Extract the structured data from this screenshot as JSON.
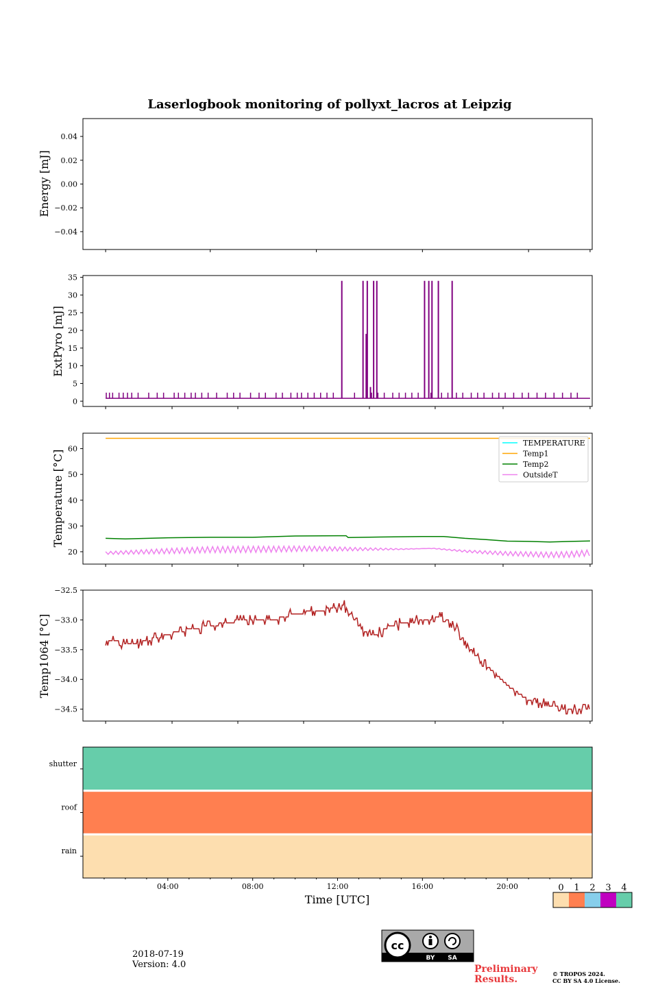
{
  "title": "Laserlogbook monitoring of pollyxt_lacros at Leipzig",
  "footer": {
    "date": "2018-07-19",
    "version": "Version: 4.0",
    "preliminary_line1": "Preliminary",
    "preliminary_line2": "Results.",
    "copyright_line1": "© TROPOS 2024.",
    "copyright_line2": "CC BY SA 4.0 License.",
    "license_badge": {
      "text": "cc",
      "by": "BY",
      "sa": "SA"
    }
  },
  "chart_data": [
    {
      "type": "line",
      "id": "energy",
      "ylabel": "Energy [mJ]",
      "ylim": [
        -0.055,
        0.055
      ],
      "yticks": [
        0.04,
        0.02,
        0.0,
        -0.02,
        -0.04
      ],
      "ytick_labels": [
        "0.04",
        "0.02",
        "0.00",
        "−0.02",
        "−0.04"
      ],
      "series": []
    },
    {
      "type": "line",
      "id": "extpyro",
      "ylabel": "ExtPyro [mJ]",
      "ylim": [
        -1.5,
        35.5
      ],
      "yticks": [
        35,
        30,
        25,
        20,
        15,
        10,
        5,
        0
      ],
      "ytick_labels": [
        "35",
        "30",
        "25",
        "20",
        "15",
        "10",
        "5",
        "0"
      ],
      "series": [
        {
          "name": "ExtPyro",
          "color": "#800080",
          "baseline": 0.8,
          "noise_spike_value": 2.4,
          "noise_spike_hours": [
            1.1,
            1.25,
            1.4,
            1.7,
            1.9,
            2.1,
            2.3,
            2.6,
            3.1,
            3.5,
            3.8,
            4.3,
            4.5,
            4.8,
            5.1,
            5.3,
            5.6,
            5.9,
            6.3,
            6.8,
            7.1,
            7.4,
            7.9,
            8.3,
            8.6,
            9.1,
            9.4,
            9.8,
            10.1,
            10.3,
            10.6,
            10.9,
            11.2,
            11.5,
            11.8,
            12.2,
            12.8,
            13.6,
            13.9,
            14.2,
            14.6,
            14.9,
            15.2,
            15.5,
            15.8,
            16.4,
            16.9,
            17.2,
            17.6,
            17.9,
            18.3,
            18.6,
            18.9,
            19.3,
            19.6,
            19.9,
            20.3,
            20.7,
            21.0,
            21.4,
            21.8,
            22.2,
            22.6,
            23.0,
            23.3
          ],
          "large_spikes": [
            {
              "hour": 12.2,
              "value": 34
            },
            {
              "hour": 13.2,
              "value": 34
            },
            {
              "hour": 13.35,
              "value": 19
            },
            {
              "hour": 13.4,
              "value": 34
            },
            {
              "hour": 13.55,
              "value": 4
            },
            {
              "hour": 13.7,
              "value": 34
            },
            {
              "hour": 13.85,
              "value": 34
            },
            {
              "hour": 16.1,
              "value": 34
            },
            {
              "hour": 16.3,
              "value": 34
            },
            {
              "hour": 16.45,
              "value": 34
            },
            {
              "hour": 16.75,
              "value": 34
            },
            {
              "hour": 17.4,
              "value": 34
            }
          ]
        }
      ]
    },
    {
      "type": "line",
      "id": "temperature",
      "ylabel": "Temperature [°C]",
      "ylim": [
        15.2,
        66.0
      ],
      "yticks": [
        60,
        50,
        40,
        30,
        20
      ],
      "ytick_labels": [
        "60",
        "50",
        "40",
        "30",
        "20"
      ],
      "legend": "top-right",
      "series": [
        {
          "name": "TEMPERATURE",
          "color": "#00ffff",
          "values": []
        },
        {
          "name": "Temp1",
          "color": "#ffa500",
          "x": [
            1.07,
            23.9
          ],
          "values": [
            64,
            64
          ]
        },
        {
          "name": "Temp2",
          "color": "#008000",
          "x": [
            1.07,
            2,
            4,
            6,
            8,
            10,
            12,
            12.4,
            12.5,
            14,
            16,
            17,
            18,
            19,
            20,
            21,
            22,
            23,
            23.9
          ],
          "values": [
            25.2,
            25.0,
            25.4,
            25.6,
            25.6,
            26.1,
            26.2,
            26.2,
            25.5,
            25.7,
            25.9,
            25.9,
            25.2,
            24.7,
            24.1,
            24.0,
            23.8,
            24.0,
            24.2
          ]
        },
        {
          "name": "OutsideT",
          "color": "#ee82ee",
          "x": [
            1.07,
            3,
            6,
            9,
            10.5,
            13,
            15,
            16.5,
            18,
            20,
            22,
            23,
            23.9
          ],
          "values": [
            19.5,
            20.0,
            20.8,
            21.0,
            21.2,
            21.0,
            21.0,
            21.3,
            20.2,
            19.3,
            18.8,
            19.0,
            19.6
          ],
          "oscillation_amplitude": 1.2
        }
      ]
    },
    {
      "type": "line",
      "id": "temp1064",
      "ylabel": "Temp1064 [°C]",
      "ylim": [
        -34.7,
        -32.5
      ],
      "yticks": [
        -32.5,
        -33.0,
        -33.5,
        -34.0,
        -34.5
      ],
      "ytick_labels": [
        "−32.5",
        "−33.0",
        "−33.5",
        "−34.0",
        "−34.5"
      ],
      "series": [
        {
          "name": "Temp1064",
          "color": "#b22222",
          "x": [
            1.07,
            2.5,
            3.5,
            4.5,
            6,
            7.5,
            9,
            10,
            11,
            12,
            12.3,
            13.2,
            13.8,
            14.5,
            16,
            17,
            17.5,
            18.5,
            20,
            21,
            22,
            23,
            23.9
          ],
          "values": [
            -33.35,
            -33.4,
            -33.3,
            -33.2,
            -33.1,
            -33.0,
            -33.0,
            -32.9,
            -32.85,
            -32.8,
            -32.75,
            -33.2,
            -33.25,
            -33.1,
            -33.0,
            -32.95,
            -33.1,
            -33.6,
            -34.1,
            -34.35,
            -34.45,
            -34.5,
            -34.5
          ],
          "jitter": 0.08
        }
      ]
    },
    {
      "type": "heatmap",
      "id": "status",
      "categories": [
        "shutter",
        "roof",
        "rain"
      ],
      "status_values": [
        4,
        1,
        0
      ],
      "colorbar": {
        "labels": [
          "0",
          "1",
          "2",
          "3",
          "4"
        ],
        "colors": [
          "#fddeaf",
          "#ff7f50",
          "#87ceeb",
          "#c000c0",
          "#66cdaa"
        ]
      },
      "xlabel": "Time [UTC]",
      "xlim": [
        0,
        24
      ],
      "xticks": [
        4,
        8,
        12,
        16,
        20
      ],
      "xtick_labels": [
        "04:00",
        "08:00",
        "12:00",
        "16:00",
        "20:00"
      ]
    }
  ]
}
